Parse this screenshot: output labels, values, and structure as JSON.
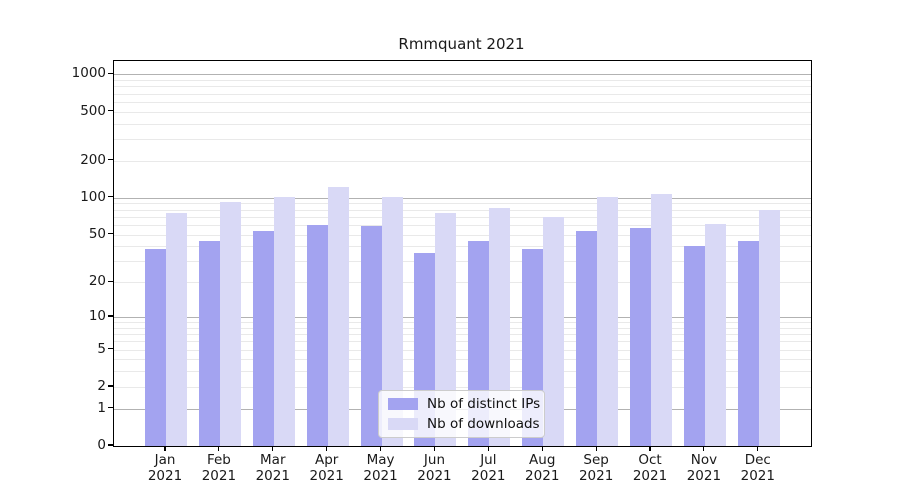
{
  "chart_data": {
    "type": "bar",
    "title": "Rmmquant 2021",
    "categories": [
      "Jan",
      "Feb",
      "Mar",
      "Apr",
      "May",
      "Jun",
      "Jul",
      "Aug",
      "Sep",
      "Oct",
      "Nov",
      "Dec"
    ],
    "year_label": "2021",
    "series": [
      {
        "name": "Nb of distinct IPs",
        "color": "#a3a3f0",
        "values": [
          38,
          44,
          53,
          60,
          59,
          35,
          44,
          38,
          54,
          57,
          40,
          44
        ]
      },
      {
        "name": "Nb of downloads",
        "color": "#d9d9f6",
        "values": [
          75,
          92,
          102,
          123,
          101,
          75,
          83,
          70,
          101,
          107,
          61,
          79
        ]
      }
    ],
    "xlabel": "",
    "ylabel": "",
    "y_scale": "log1p",
    "y_ticks": [
      0,
      1,
      2,
      5,
      10,
      20,
      50,
      100,
      200,
      500,
      1000
    ],
    "y_major_gridlines": [
      1,
      10,
      100,
      1000
    ],
    "ylim": [
      0,
      1285
    ],
    "grid": true,
    "legend_position": "lower center",
    "colors": {
      "major_grid": "#b2b2b2",
      "minor_grid": "#e9e9e9",
      "frame": "#000000",
      "text": "#1a1a1a",
      "legend_border": "#cccccc"
    }
  }
}
